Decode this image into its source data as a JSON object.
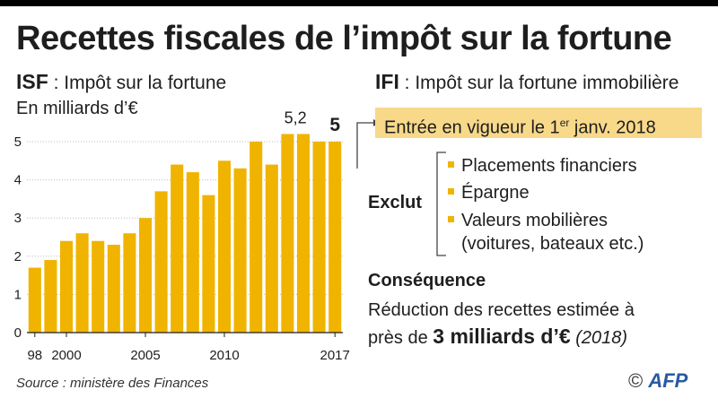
{
  "title": "Recettes fiscales de l’impôt sur la fortune",
  "isf": {
    "abbr": "ISF",
    "label": " : Impôt sur la fortune",
    "unit": "En milliards d’€"
  },
  "ifi": {
    "abbr": "IFI",
    "label": " : Impôt sur la fortune immobilière",
    "entry_pre": "Entrée en vigueur le 1",
    "entry_sup": "er",
    "entry_post": " janv. 2018",
    "excludes_label": "Exclut",
    "excludes": [
      "Placements financiers",
      "Épargne",
      "Valeurs mobilières",
      "(voitures, bateaux etc.)"
    ],
    "consequence_title": "Conséquence",
    "consequence_line1": "Réduction des recettes estimée à",
    "consequence_pre": "près de ",
    "consequence_value": "3 milliards d’€",
    "consequence_year": " (2018)"
  },
  "source": "Source : ministère des Finances",
  "credit": {
    "symbol": "©",
    "logo": "AFP"
  },
  "colors": {
    "bar": "#f0b400",
    "box": "#f8d98a",
    "text": "#1e1e1e"
  },
  "chart_data": {
    "type": "bar",
    "title": "Recettes fiscales de l’impôt sur la fortune",
    "ylabel": "En milliards d’€",
    "ylim": [
      0,
      5.5
    ],
    "yticks": [
      0,
      1,
      2,
      3,
      4,
      5
    ],
    "categories": [
      "1998",
      "1999",
      "2000",
      "2001",
      "2002",
      "2003",
      "2004",
      "2005",
      "2006",
      "2007",
      "2008",
      "2009",
      "2010",
      "2011",
      "2012",
      "2013",
      "2014",
      "2015",
      "2016",
      "2017"
    ],
    "values": [
      1.7,
      1.9,
      2.4,
      2.6,
      2.4,
      2.3,
      2.6,
      3.0,
      3.7,
      4.4,
      4.2,
      3.6,
      4.5,
      4.3,
      5.0,
      4.4,
      5.2,
      5.2,
      5.0,
      5.0
    ],
    "xtick_labels": [
      {
        "category": "1998",
        "text": "98"
      },
      {
        "category": "2000",
        "text": "2000"
      },
      {
        "category": "2005",
        "text": "2005"
      },
      {
        "category": "2010",
        "text": "2010"
      },
      {
        "category": "2017",
        "text": "2017"
      }
    ],
    "annotations": [
      {
        "category": "2014",
        "text": "5,2",
        "bold": false
      },
      {
        "category": "2017",
        "text": "5",
        "bold": true
      }
    ],
    "grid": true
  }
}
